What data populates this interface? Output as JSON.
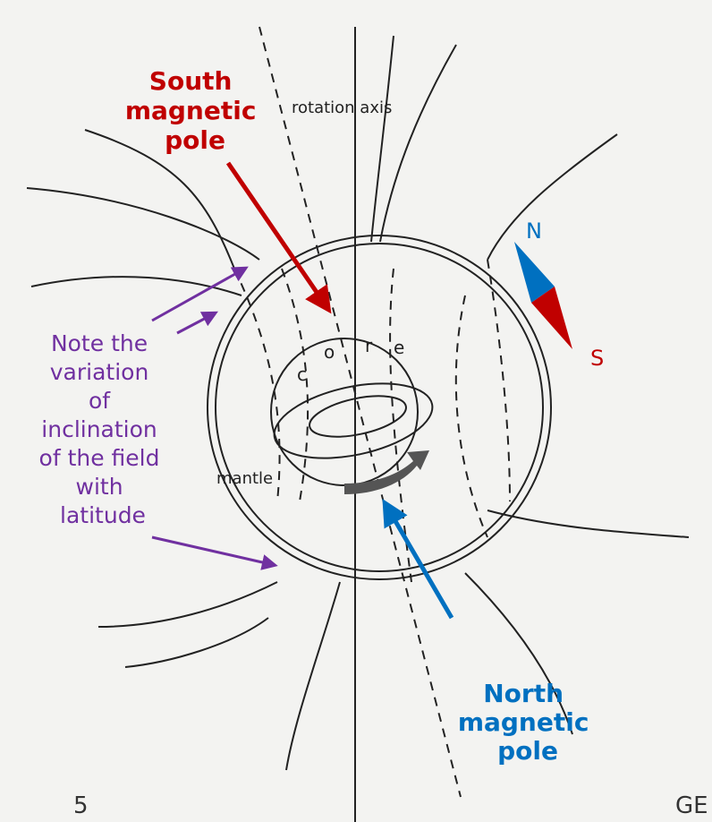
{
  "labels": {
    "south_pole": [
      "South",
      "magnetic",
      "pole"
    ],
    "rotation_axis": "rotation axis",
    "compass": {
      "n": "N",
      "s": "S"
    },
    "note": [
      "Note the",
      "variation",
      "of",
      "inclination",
      "of the field",
      "with",
      "latitude"
    ],
    "core": [
      "c",
      "o",
      "r",
      "e"
    ],
    "mantle": "mantle",
    "north_pole": [
      "North",
      "magnetic",
      "pole"
    ]
  },
  "footer": {
    "page": "5",
    "right": "GE"
  }
}
